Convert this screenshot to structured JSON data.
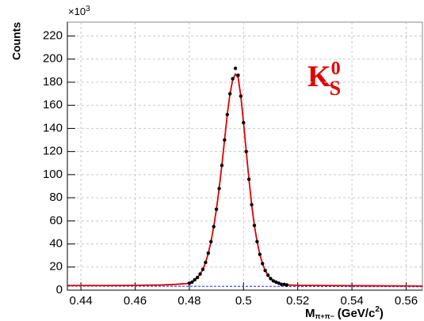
{
  "chart_data": {
    "type": "line",
    "y_label": "Counts",
    "y_multiplier": "×10",
    "y_multiplier_exp": "3",
    "x_label": "M",
    "x_label_sub": "π+π−",
    "x_label_unit": "(GeV/c",
    "x_label_unit_sup": "2",
    "x_label_close": ")",
    "annotation": "K",
    "annotation_sup": "0",
    "annotation_sub": "S",
    "annotation_color": "#e00000",
    "xlim": [
      0.435,
      0.566
    ],
    "ylim": [
      0,
      232
    ],
    "xticks": [
      0.44,
      0.46,
      0.48,
      0.5,
      0.52,
      0.54,
      0.56
    ],
    "yticks": [
      0,
      20,
      40,
      60,
      80,
      100,
      120,
      140,
      160,
      180,
      200,
      220
    ],
    "grid": true,
    "series": [
      {
        "mode": "dashed",
        "color": "#3344ff",
        "x": [
          0.435,
          0.566
        ],
        "values": [
          3.5,
          3
        ]
      },
      {
        "mode": "line",
        "color": "#e00000",
        "x": [
          0.435,
          0.45,
          0.46,
          0.47,
          0.475,
          0.478,
          0.48,
          0.481,
          0.482,
          0.483,
          0.484,
          0.485,
          0.486,
          0.487,
          0.488,
          0.489,
          0.49,
          0.491,
          0.492,
          0.493,
          0.494,
          0.495,
          0.496,
          0.497,
          0.498,
          0.499,
          0.5,
          0.501,
          0.502,
          0.503,
          0.504,
          0.505,
          0.506,
          0.507,
          0.508,
          0.509,
          0.51,
          0.511,
          0.512,
          0.513,
          0.514,
          0.516,
          0.52,
          0.53,
          0.545,
          0.566
        ],
        "values": [
          4,
          4,
          4.2,
          4.5,
          5,
          5.5,
          6,
          7,
          9,
          11,
          14,
          18,
          24,
          32,
          42,
          55,
          70,
          88,
          108,
          130,
          152,
          170,
          182,
          187,
          184,
          168,
          145,
          120,
          96,
          74,
          56,
          42,
          31,
          23,
          17,
          13,
          10,
          8,
          7,
          6,
          5,
          4.5,
          4.2,
          4,
          3.8,
          3.6
        ]
      },
      {
        "mode": "markers",
        "color": "#000000",
        "x": [
          0.48,
          0.481,
          0.482,
          0.483,
          0.484,
          0.485,
          0.486,
          0.487,
          0.488,
          0.489,
          0.49,
          0.491,
          0.492,
          0.493,
          0.494,
          0.495,
          0.496,
          0.497,
          0.498,
          0.499,
          0.5,
          0.501,
          0.502,
          0.503,
          0.504,
          0.505,
          0.506,
          0.507,
          0.508,
          0.509,
          0.51,
          0.511,
          0.512,
          0.513,
          0.514,
          0.515,
          0.516
        ],
        "values": [
          6,
          7,
          9,
          11,
          14,
          18,
          24,
          32,
          42,
          55,
          70,
          88,
          108,
          130,
          152,
          170,
          183,
          192,
          186,
          168,
          145,
          120,
          96,
          74,
          56,
          42,
          31,
          23,
          17,
          13,
          10,
          8,
          7,
          6,
          5,
          5,
          4.5
        ]
      }
    ]
  }
}
